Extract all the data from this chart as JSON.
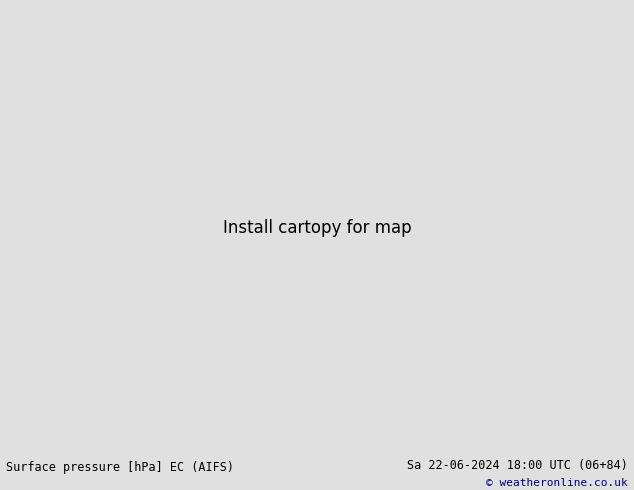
{
  "title_left": "Surface pressure [hPa] EC (AIFS)",
  "title_right": "Sa 22-06-2024 18:00 UTC (06+84)",
  "copyright": "© weatheronline.co.uk",
  "bg_color": "#e0e0e0",
  "land_color": "#c8e8b0",
  "ocean_color": "#dcdcdc",
  "coast_color": "#888888",
  "red_color": "#dd0000",
  "blue_color": "#0000cc",
  "black_color": "#000000",
  "navy_color": "#000080",
  "map_extent": [
    -170,
    -50,
    20,
    80
  ],
  "footer_fontsize": 8.5
}
